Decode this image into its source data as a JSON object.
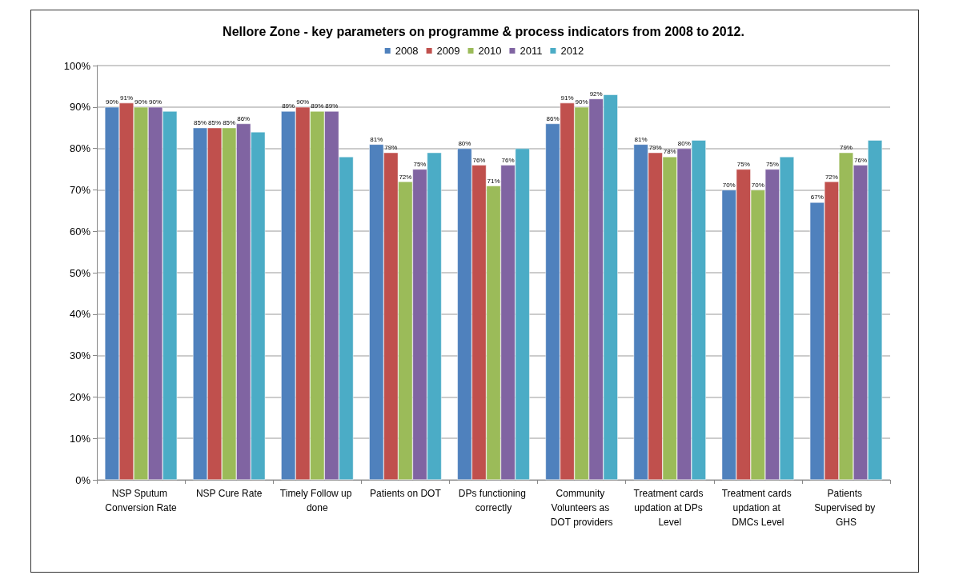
{
  "chart_data": {
    "type": "bar",
    "title": "Nellore Zone - key parameters on programme & process indicators from 2008 to 2012.",
    "categories": [
      "NSP Sputum Conversion Rate",
      "NSP Cure Rate",
      "Timely Follow up done",
      "Patients on DOT",
      "DPs functioning correctly",
      "Community Volunteers as DOT providers",
      "Treatment cards updation at DPs Level",
      "Treatment cards updation at DMCs Level",
      "Patients Supervised by GHS"
    ],
    "series": [
      {
        "name": "2008",
        "color": "#4f81bd",
        "values": [
          90,
          85,
          89,
          81,
          80,
          86,
          81,
          70,
          67
        ],
        "value_labels": [
          "90%",
          "85%",
          "89%",
          "81%",
          "80%",
          "86%",
          "81%",
          "70%",
          "67%"
        ]
      },
      {
        "name": "2009",
        "color": "#c0504d",
        "values": [
          91,
          85,
          90,
          79,
          76,
          91,
          79,
          75,
          72
        ],
        "value_labels": [
          "91%",
          "85%",
          "90%",
          "79%",
          "76%",
          "91%",
          "79%",
          "75%",
          "72%"
        ]
      },
      {
        "name": "2010",
        "color": "#9bbb59",
        "values": [
          90,
          85,
          89,
          72,
          71,
          90,
          78,
          70,
          79
        ],
        "value_labels": [
          "90%",
          "85%",
          "89%",
          "72%",
          "71%",
          "90%",
          "78%",
          "70%",
          "79%"
        ]
      },
      {
        "name": "2011",
        "color": "#8064a2",
        "values": [
          90,
          86,
          89,
          75,
          76,
          92,
          80,
          75,
          76
        ],
        "value_labels": [
          "90%",
          "86%",
          "89%",
          "75%",
          "76%",
          "92%",
          "80%",
          "75%",
          "76%"
        ]
      },
      {
        "name": "2012",
        "color": "#4bacc6",
        "values": [
          89,
          84,
          78,
          79,
          80,
          93,
          82,
          78,
          82
        ]
      }
    ],
    "ylim": [
      0,
      100
    ],
    "yticks": [
      {
        "value": 0,
        "label": "0%"
      },
      {
        "value": 10,
        "label": "10%"
      },
      {
        "value": 20,
        "label": "20%"
      },
      {
        "value": 30,
        "label": "30%"
      },
      {
        "value": 40,
        "label": "40%"
      },
      {
        "value": 50,
        "label": "50%"
      },
      {
        "value": 60,
        "label": "60%"
      },
      {
        "value": 70,
        "label": "70%"
      },
      {
        "value": 80,
        "label": "80%"
      },
      {
        "value": 90,
        "label": "90%"
      },
      {
        "value": 100,
        "label": "100%"
      }
    ],
    "grid": "y",
    "legend": "top"
  }
}
